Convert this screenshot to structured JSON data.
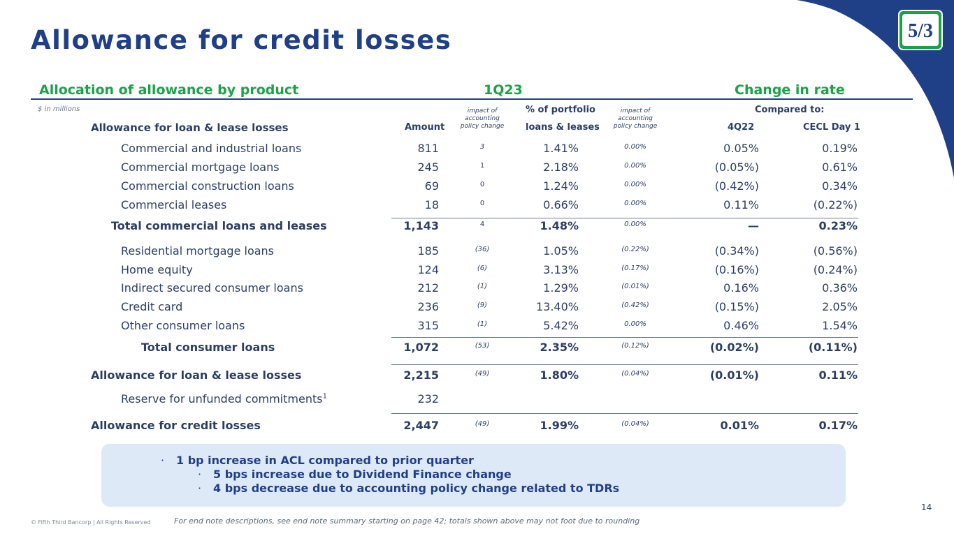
{
  "title": "Allowance for credit losses",
  "brand": {
    "primary": "#1f3f87",
    "accent": "#1ea049",
    "logo_text": "5/3"
  },
  "header": {
    "left": "Allocation of allowance by product",
    "center": "1Q23",
    "right": "Change in rate",
    "units": "$ in millions"
  },
  "columns": {
    "label": "Allowance for loan & lease losses",
    "amount": "Amount",
    "impact1": "impact of accounting policy change",
    "pct_top": "% of portfolio",
    "pct_bottom": "loans & leases",
    "impact2": "impact of accounting policy change",
    "compared": "Compared to:",
    "q4": "4Q22",
    "cecl": "CECL Day 1"
  },
  "rows": [
    {
      "label": "Commercial and industrial loans",
      "amount": "811",
      "impact": "3",
      "pct": "1.41%",
      "pimpact": "0.00%",
      "q4": "0.05%",
      "cecl": "0.19%"
    },
    {
      "label": "Commercial mortgage loans",
      "amount": "245",
      "impact": "1",
      "pct": "2.18%",
      "pimpact": "0.00%",
      "q4": "(0.05%)",
      "cecl": "0.61%"
    },
    {
      "label": "Commercial construction loans",
      "amount": "69",
      "impact": "0",
      "pct": "1.24%",
      "pimpact": "0.00%",
      "q4": "(0.42%)",
      "cecl": "0.34%"
    },
    {
      "label": "Commercial leases",
      "amount": "18",
      "impact": "0",
      "pct": "0.66%",
      "pimpact": "0.00%",
      "q4": "0.11%",
      "cecl": "(0.22%)"
    },
    {
      "label": "Total commercial loans and leases",
      "amount": "1,143",
      "impact": "4",
      "pct": "1.48%",
      "pimpact": "0.00%",
      "q4": "—",
      "cecl": "0.23%"
    },
    {
      "label": "Residential mortgage loans",
      "amount": "185",
      "impact": "(36)",
      "pct": "1.05%",
      "pimpact": "(0.22%)",
      "q4": "(0.34%)",
      "cecl": "(0.56%)"
    },
    {
      "label": "Home equity",
      "amount": "124",
      "impact": "(6)",
      "pct": "3.13%",
      "pimpact": "(0.17%)",
      "q4": "(0.16%)",
      "cecl": "(0.24%)"
    },
    {
      "label": "Indirect secured consumer loans",
      "amount": "212",
      "impact": "(1)",
      "pct": "1.29%",
      "pimpact": "(0.01%)",
      "q4": "0.16%",
      "cecl": "0.36%"
    },
    {
      "label": "Credit card",
      "amount": "236",
      "impact": "(9)",
      "pct": "13.40%",
      "pimpact": "(0.42%)",
      "q4": "(0.15%)",
      "cecl": "2.05%"
    },
    {
      "label": "Other consumer loans",
      "amount": "315",
      "impact": "(1)",
      "pct": "5.42%",
      "pimpact": "0.00%",
      "q4": "0.46%",
      "cecl": "1.54%"
    },
    {
      "label": "Total consumer loans",
      "amount": "1,072",
      "impact": "(53)",
      "pct": "2.35%",
      "pimpact": "(0.12%)",
      "q4": "(0.02%)",
      "cecl": "(0.11%)"
    },
    {
      "label": "Allowance for loan & lease losses",
      "amount": "2,215",
      "impact": "(49)",
      "pct": "1.80%",
      "pimpact": "(0.04%)",
      "q4": "(0.01%)",
      "cecl": "0.11%"
    },
    {
      "label": "Reserve for unfunded commitments",
      "sup": "1",
      "amount": "232",
      "impact": "",
      "pct": "",
      "pimpact": "",
      "q4": "",
      "cecl": ""
    },
    {
      "label": "Allowance for credit losses",
      "amount": "2,447",
      "impact": "(49)",
      "pct": "1.99%",
      "pimpact": "(0.04%)",
      "q4": "0.01%",
      "cecl": "0.17%"
    }
  ],
  "bullets": [
    "1 bp increase in ACL compared to prior quarter",
    "5 bps increase due to Dividend Finance change",
    "4 bps decrease due to accounting policy change related to TDRs"
  ],
  "bullet_marker": "·",
  "footer": {
    "copyright": "© Fifth Third Bancorp | All Rights Reserved",
    "note": "For end note descriptions, see end note summary starting on page 42; totals shown above may not foot due to rounding",
    "page": "14"
  }
}
